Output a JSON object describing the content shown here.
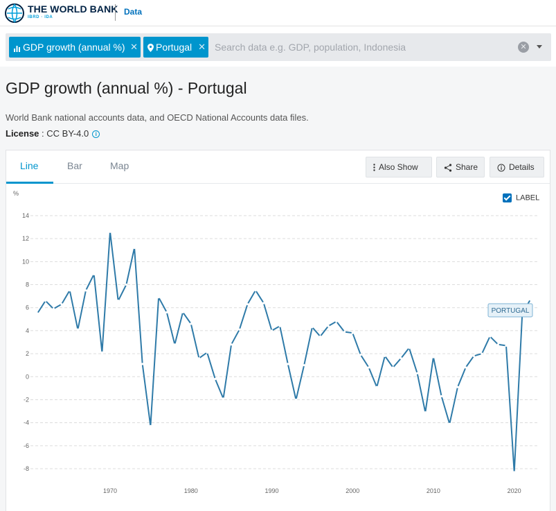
{
  "header": {
    "brand_title": "THE WORLD BANK",
    "brand_sub": "IBRD · IDA",
    "data_link": "Data"
  },
  "search": {
    "chips": [
      {
        "label": "GDP growth (annual %)",
        "icon": "bar-chart-icon"
      },
      {
        "label": "Portugal",
        "icon": "location-pin-icon"
      }
    ],
    "placeholder": "Search data e.g. GDP, population, Indonesia"
  },
  "page": {
    "title": "GDP growth (annual %) - Portugal",
    "source": "World Bank national accounts data, and OECD National Accounts data files.",
    "license_label": "License",
    "license_value": " : CC BY-4.0"
  },
  "tabs": [
    "Line",
    "Bar",
    "Map"
  ],
  "toolbar": {
    "also_show": "Also Show",
    "share": "Share",
    "details": "Details"
  },
  "label_toggle": "LABEL",
  "colors": {
    "accent": "#0095cd",
    "line": "#2e7aa8"
  },
  "chart_data": {
    "type": "line",
    "ylabel": "%",
    "ylim": [
      -8,
      14
    ],
    "yticks": [
      14,
      12,
      10,
      8,
      6,
      4,
      2,
      0,
      -2,
      -4,
      -6,
      -8
    ],
    "xticks": [
      1970,
      1980,
      1990,
      2000,
      2010,
      2020
    ],
    "grid": true,
    "series": [
      {
        "name": "PORTUGAL",
        "x": [
          1961,
          1962,
          1963,
          1964,
          1965,
          1966,
          1967,
          1968,
          1969,
          1970,
          1971,
          1972,
          1973,
          1974,
          1975,
          1976,
          1977,
          1978,
          1979,
          1980,
          1981,
          1982,
          1983,
          1984,
          1985,
          1986,
          1987,
          1988,
          1989,
          1990,
          1991,
          1992,
          1993,
          1994,
          1995,
          1996,
          1997,
          1998,
          1999,
          2000,
          2001,
          2002,
          2003,
          2004,
          2005,
          2006,
          2007,
          2008,
          2009,
          2010,
          2011,
          2012,
          2013,
          2014,
          2015,
          2016,
          2017,
          2018,
          2019,
          2020,
          2021,
          2022
        ],
        "values": [
          5.5,
          6.6,
          5.9,
          6.3,
          7.5,
          4.1,
          7.5,
          8.9,
          2.1,
          12.6,
          6.6,
          8.0,
          11.2,
          1.1,
          -4.3,
          6.9,
          5.6,
          2.8,
          5.6,
          4.6,
          1.6,
          2.1,
          -0.2,
          -1.9,
          2.8,
          4.1,
          6.3,
          7.5,
          6.4,
          4.0,
          4.4,
          1.1,
          -2.0,
          1.0,
          4.3,
          3.5,
          4.4,
          4.8,
          3.9,
          3.8,
          1.9,
          0.8,
          -0.9,
          1.8,
          0.8,
          1.6,
          2.5,
          0.3,
          -3.1,
          1.7,
          -1.7,
          -4.1,
          -0.9,
          0.8,
          1.8,
          2.0,
          3.5,
          2.8,
          2.7,
          -8.3,
          5.5,
          6.7
        ]
      }
    ]
  }
}
